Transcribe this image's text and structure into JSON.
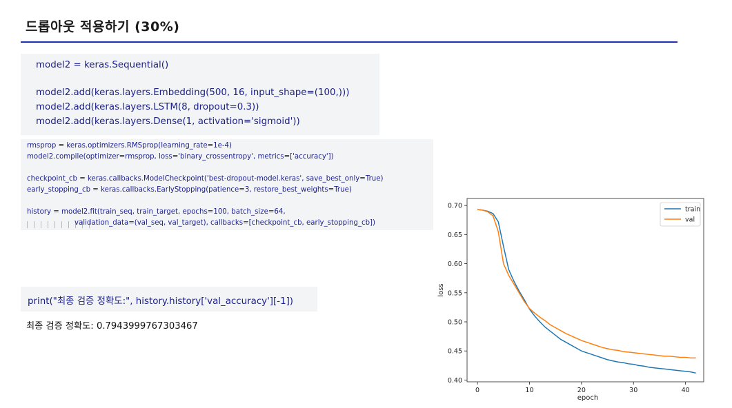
{
  "slide": {
    "title": "드롭아웃 적용하기 (30%)"
  },
  "code_block_1": {
    "lines": [
      "model2 = keras.Sequential()",
      "model2.add(keras.layers.Embedding(500, 16, input_shape=(100,)))",
      "model2.add(keras.layers.LSTM(8, dropout=0.3))",
      "model2.add(keras.layers.Dense(1, activation='sigmoid'))"
    ]
  },
  "code_block_2": {
    "lines": [
      "rmsprop = keras.optimizers.RMSprop(learning_rate=1e-4)",
      "model2.compile(optimizer=rmsprop, loss='binary_crossentropy', metrics=['accuracy'])",
      "checkpoint_cb = keras.callbacks.ModelCheckpoint('best-dropout-model.keras', save_best_only=True)",
      "early_stopping_cb = keras.callbacks.EarlyStopping(patience=3, restore_best_weights=True)",
      "history = model2.fit(train_seq, train_target, epochs=100, batch_size=64,",
      "validation_data=(val_seq, val_target), callbacks=[checkpoint_cb, early_stopping_cb])"
    ]
  },
  "code_block_3": {
    "line": "print(\"최종 검증 정확도:\", history.history['val_accuracy'][-1])"
  },
  "output": {
    "text": "최종 검증 정확도: 0.7943999767303467"
  },
  "chart_data": {
    "type": "line",
    "title": "",
    "xlabel": "epoch",
    "ylabel": "loss",
    "xlim": [
      -2,
      43.5
    ],
    "ylim": [
      0.4,
      0.7
    ],
    "x_ticks": [
      "0",
      "10",
      "20",
      "30",
      "40"
    ],
    "y_ticks": [
      "0.40",
      "0.45",
      "0.50",
      "0.55",
      "0.60",
      "0.65",
      "0.70"
    ],
    "legend_position": "top-right",
    "colors": {
      "train": "#1f77b4",
      "val": "#ff7f0e"
    },
    "series": [
      {
        "name": "train",
        "x": [
          0,
          1,
          2,
          3,
          4,
          5,
          6,
          7,
          8,
          9,
          10,
          11,
          12,
          13,
          14,
          15,
          16,
          17,
          18,
          19,
          20,
          21,
          22,
          23,
          24,
          25,
          26,
          27,
          28,
          29,
          30,
          31,
          32,
          33,
          34,
          35,
          36,
          37,
          38,
          39,
          40,
          41,
          42
        ],
        "values": [
          0.693,
          0.692,
          0.69,
          0.686,
          0.672,
          0.63,
          0.59,
          0.57,
          0.553,
          0.538,
          0.522,
          0.51,
          0.5,
          0.491,
          0.484,
          0.477,
          0.47,
          0.465,
          0.46,
          0.455,
          0.45,
          0.447,
          0.444,
          0.441,
          0.438,
          0.435,
          0.433,
          0.431,
          0.43,
          0.428,
          0.427,
          0.425,
          0.424,
          0.422,
          0.421,
          0.42,
          0.419,
          0.418,
          0.417,
          0.416,
          0.415,
          0.414,
          0.412
        ]
      },
      {
        "name": "val",
        "x": [
          0,
          1,
          2,
          3,
          4,
          5,
          6,
          7,
          8,
          9,
          10,
          11,
          12,
          13,
          14,
          15,
          16,
          17,
          18,
          19,
          20,
          21,
          22,
          23,
          24,
          25,
          26,
          27,
          28,
          29,
          30,
          31,
          32,
          33,
          34,
          35,
          36,
          37,
          38,
          39,
          40,
          41,
          42
        ],
        "values": [
          0.693,
          0.692,
          0.689,
          0.682,
          0.655,
          0.6,
          0.58,
          0.565,
          0.55,
          0.535,
          0.523,
          0.515,
          0.508,
          0.502,
          0.495,
          0.49,
          0.485,
          0.48,
          0.476,
          0.472,
          0.468,
          0.465,
          0.462,
          0.459,
          0.456,
          0.454,
          0.452,
          0.451,
          0.449,
          0.448,
          0.447,
          0.446,
          0.445,
          0.444,
          0.443,
          0.442,
          0.441,
          0.441,
          0.44,
          0.439,
          0.439,
          0.438,
          0.438
        ]
      }
    ]
  }
}
